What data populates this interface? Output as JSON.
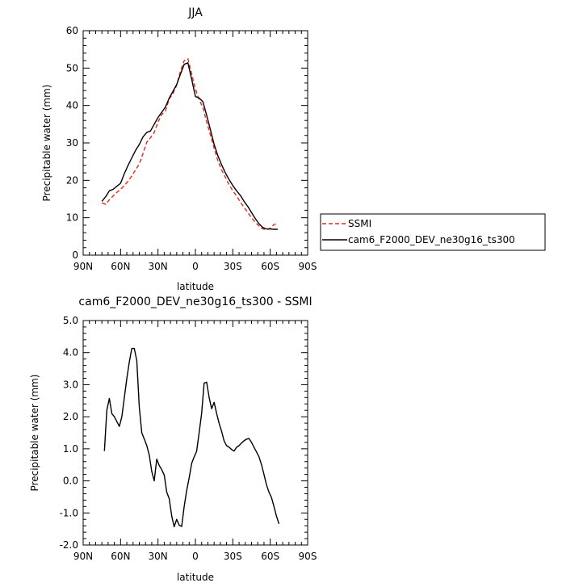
{
  "chart_data": [
    {
      "type": "line",
      "title": "JJA",
      "xlabel": "latitude",
      "ylabel": "Precipitable water (mm)",
      "xlim": [
        90,
        -90
      ],
      "ylim": [
        0,
        60
      ],
      "xticks": [
        90,
        60,
        30,
        0,
        -30,
        -60,
        -90
      ],
      "xtick_labels": [
        "90N",
        "60N",
        "30N",
        "0",
        "30S",
        "60S",
        "90S"
      ],
      "yticks": [
        0,
        10,
        20,
        30,
        40,
        50,
        60
      ],
      "ytick_labels": [
        "0",
        "10",
        "20",
        "30",
        "40",
        "50",
        "60"
      ],
      "legend_position": "right",
      "series": [
        {
          "name": "SSMI",
          "color": "#e8261e",
          "dash": "dashed",
          "x": [
            75,
            72,
            69,
            66,
            63,
            60,
            57,
            54,
            51,
            48,
            45,
            42,
            39,
            36,
            33,
            30,
            27,
            24,
            21,
            18,
            15,
            12,
            9,
            6,
            3,
            0,
            -3,
            -6,
            -9,
            -12,
            -15,
            -18,
            -21,
            -24,
            -27,
            -30,
            -33,
            -36,
            -39,
            -42,
            -45,
            -48,
            -51,
            -54,
            -57,
            -60,
            -63,
            -66
          ],
          "y": [
            14.0,
            13.6,
            14.8,
            15.8,
            16.8,
            17.6,
            18.6,
            19.8,
            21.2,
            22.8,
            24.4,
            27.2,
            30.2,
            31.4,
            32.8,
            35.6,
            37.6,
            38.6,
            41.8,
            43.2,
            45.4,
            49.2,
            52.0,
            52.5,
            48.4,
            44.4,
            41.6,
            39.4,
            35.6,
            32.2,
            28.6,
            25.2,
            22.8,
            20.8,
            18.8,
            17.2,
            15.8,
            14.2,
            12.8,
            11.4,
            10.0,
            8.8,
            7.8,
            7.0,
            6.8,
            7.2,
            8.2,
            8.4
          ]
        },
        {
          "name": "cam6_F2000_DEV_ne30g16_ts300",
          "color": "#000000",
          "dash": "solid",
          "x": [
            75,
            72,
            69,
            66,
            63,
            60,
            57,
            54,
            51,
            48,
            45,
            42,
            39,
            36,
            33,
            30,
            27,
            24,
            21,
            18,
            15,
            12,
            9,
            6,
            3,
            0,
            -3,
            -6,
            -9,
            -12,
            -15,
            -18,
            -21,
            -24,
            -27,
            -30,
            -33,
            -36,
            -39,
            -42,
            -45,
            -48,
            -51,
            -54,
            -57,
            -60,
            -63,
            -66
          ],
          "y": [
            14.4,
            15.6,
            17.2,
            17.6,
            18.4,
            19.2,
            21.8,
            24.0,
            26.0,
            28.0,
            29.6,
            31.6,
            32.8,
            33.2,
            35.0,
            36.8,
            38.2,
            39.6,
            42.0,
            43.8,
            45.6,
            48.4,
            51.0,
            51.4,
            47.0,
            42.4,
            42.0,
            41.0,
            37.4,
            33.6,
            29.6,
            26.6,
            24.2,
            22.0,
            20.2,
            18.6,
            17.2,
            16.0,
            14.4,
            13.0,
            11.4,
            9.8,
            8.4,
            7.4,
            7.0,
            7.0,
            6.9,
            6.9
          ]
        }
      ]
    },
    {
      "type": "line",
      "title": "cam6_F2000_DEV_ne30g16_ts300 - SSMI",
      "xlabel": "latitude",
      "ylabel": "Precipitable water (mm)",
      "xlim": [
        90,
        -90
      ],
      "ylim": [
        -2.0,
        5.0
      ],
      "xticks": [
        90,
        60,
        30,
        0,
        -30,
        -60,
        -90
      ],
      "xtick_labels": [
        "90N",
        "60N",
        "30N",
        "0",
        "30S",
        "60S",
        "90S"
      ],
      "yticks": [
        -2,
        -1,
        0,
        1,
        2,
        3,
        4,
        5
      ],
      "ytick_labels": [
        "-2.0",
        "-1.0",
        "0.0",
        "1.0",
        "2.0",
        "3.0",
        "4.0",
        "5.0"
      ],
      "series": [
        {
          "color": "#000000",
          "dash": "solid",
          "x": [
            73,
            71,
            69,
            67,
            65,
            63,
            61,
            59,
            57,
            55,
            53,
            51,
            49,
            47,
            45,
            43,
            41,
            39,
            37,
            35,
            33,
            31,
            29,
            27,
            25,
            23,
            21,
            19,
            17,
            15,
            13,
            11,
            9,
            7,
            5,
            3,
            1,
            -1,
            -3,
            -5,
            -7,
            -9,
            -11,
            -13,
            -15,
            -17,
            -19,
            -21,
            -23,
            -25,
            -27,
            -29,
            -31,
            -33,
            -35,
            -37,
            -39,
            -41,
            -43,
            -45,
            -47,
            -49,
            -51,
            -53,
            -55,
            -57,
            -59,
            -61,
            -63,
            -65,
            -67
          ],
          "y": [
            0.93,
            2.2,
            2.57,
            2.1,
            2.0,
            1.85,
            1.7,
            2.0,
            2.6,
            3.2,
            3.7,
            4.13,
            4.13,
            3.75,
            2.3,
            1.5,
            1.3,
            1.1,
            0.8,
            0.3,
            0.0,
            0.68,
            0.48,
            0.35,
            0.18,
            -0.35,
            -0.56,
            -1.1,
            -1.43,
            -1.2,
            -1.38,
            -1.42,
            -0.8,
            -0.3,
            0.1,
            0.55,
            0.75,
            0.92,
            1.5,
            2.1,
            3.05,
            3.08,
            2.6,
            2.25,
            2.45,
            2.1,
            1.8,
            1.55,
            1.25,
            1.1,
            1.05,
            0.98,
            0.93,
            1.05,
            1.1,
            1.18,
            1.25,
            1.3,
            1.32,
            1.2,
            1.05,
            0.9,
            0.75,
            0.5,
            0.2,
            -0.12,
            -0.35,
            -0.52,
            -0.8,
            -1.1,
            -1.34
          ]
        }
      ]
    }
  ]
}
